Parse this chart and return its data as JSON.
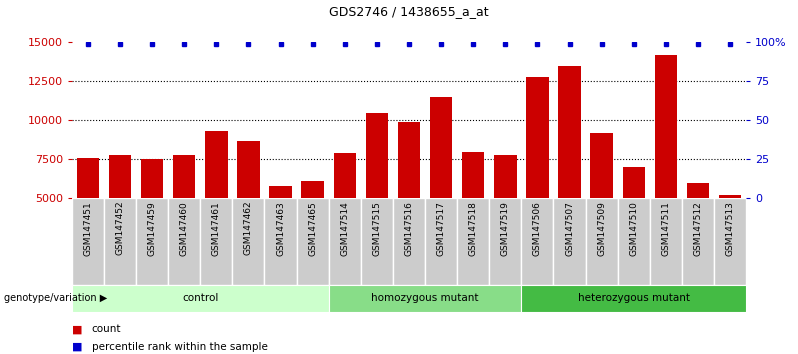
{
  "title": "GDS2746 / 1438655_a_at",
  "categories": [
    "GSM147451",
    "GSM147452",
    "GSM147459",
    "GSM147460",
    "GSM147461",
    "GSM147462",
    "GSM147463",
    "GSM147465",
    "GSM147514",
    "GSM147515",
    "GSM147516",
    "GSM147517",
    "GSM147518",
    "GSM147519",
    "GSM147506",
    "GSM147507",
    "GSM147509",
    "GSM147510",
    "GSM147511",
    "GSM147512",
    "GSM147513"
  ],
  "counts": [
    7600,
    7800,
    7500,
    7800,
    9300,
    8700,
    5800,
    6100,
    7900,
    10500,
    9900,
    11500,
    8000,
    7800,
    12800,
    13500,
    9200,
    7000,
    14200,
    6000,
    5200
  ],
  "groups": [
    {
      "label": "control",
      "start": 0,
      "end": 7,
      "color": "#ccffcc"
    },
    {
      "label": "homozygous mutant",
      "start": 8,
      "end": 13,
      "color": "#88dd88"
    },
    {
      "label": "heterozygous mutant",
      "start": 14,
      "end": 20,
      "color": "#44bb44"
    }
  ],
  "ylim_left": [
    5000,
    15000
  ],
  "ylim_right": [
    0,
    100
  ],
  "yticks_left": [
    5000,
    7500,
    10000,
    12500,
    15000
  ],
  "yticks_right": [
    0,
    25,
    50,
    75,
    100
  ],
  "bar_color": "#cc0000",
  "dot_color": "#0000cc",
  "grid_color": "#000000",
  "background_color": "#ffffff",
  "tick_label_color_left": "#cc0000",
  "tick_label_color_right": "#0000cc",
  "legend_count_label": "count",
  "legend_percentile_label": "percentile rank within the sample",
  "genotype_label": "genotype/variation",
  "bar_width": 0.7,
  "xtick_bg_color": "#cccccc",
  "xtick_border_color": "#888888"
}
